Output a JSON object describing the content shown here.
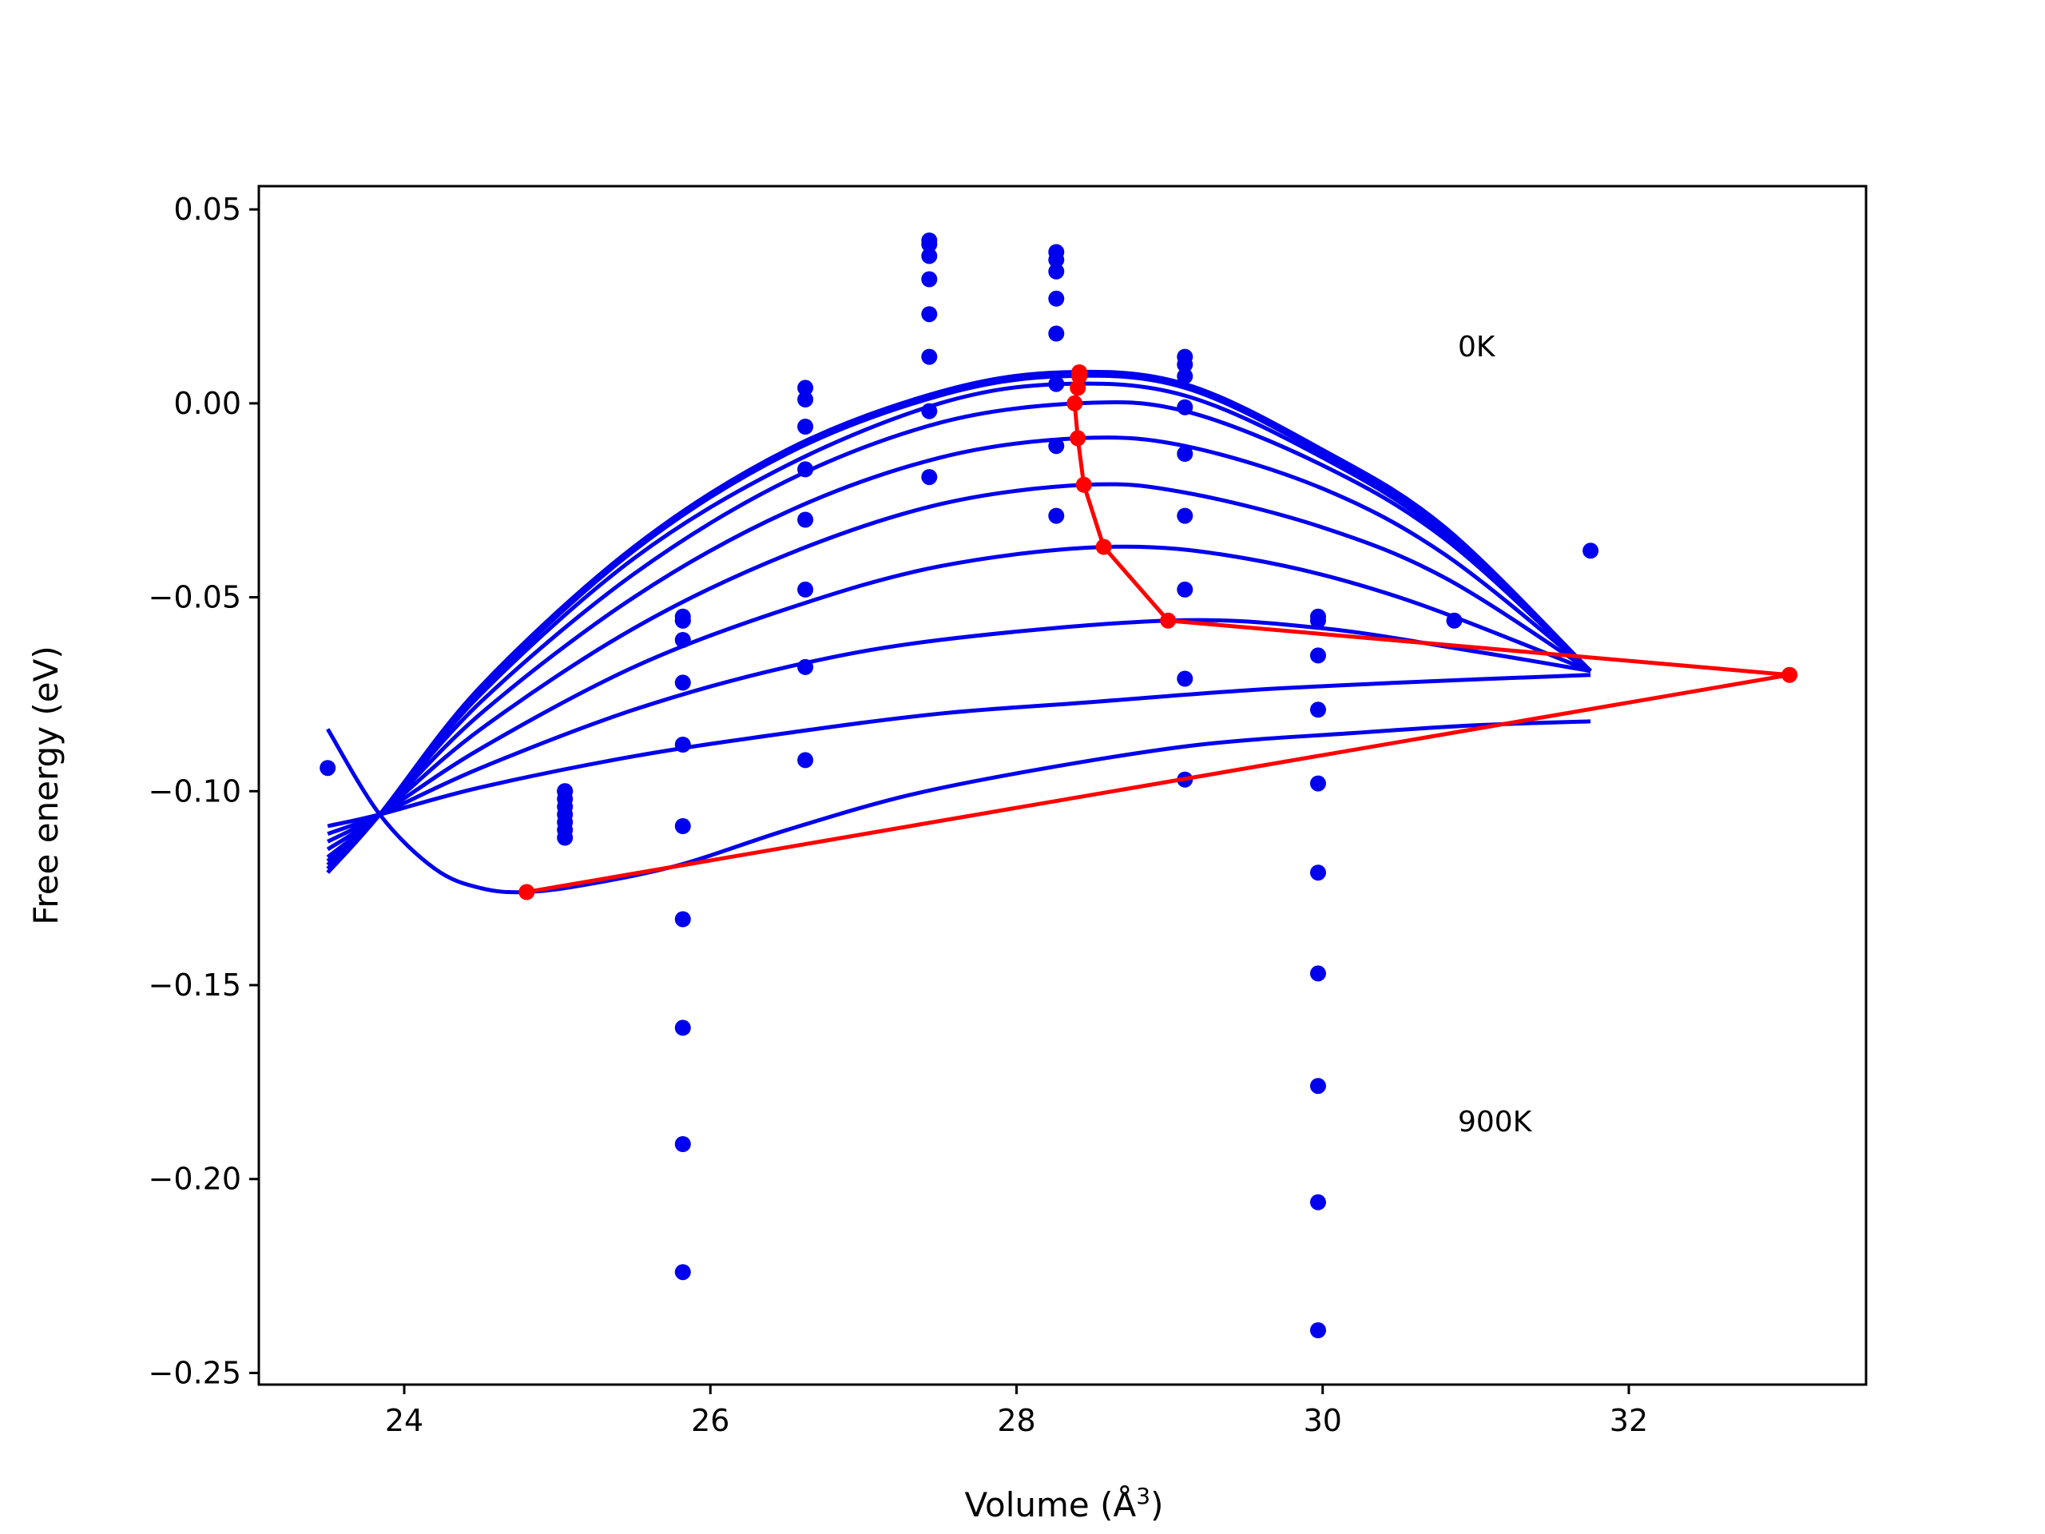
{
  "chart_data": {
    "type": "line",
    "xlabel": "Volume (Å",
    "xlabel_sup": "3",
    "xlabel_close": ")",
    "ylabel": "Free energy (eV)",
    "xlim": [
      23.05,
      33.55
    ],
    "ylim": [
      -0.253,
      0.056
    ],
    "xticks": [
      24,
      26,
      28,
      30,
      32
    ],
    "xtick_labels": [
      "24",
      "26",
      "28",
      "30",
      "32"
    ],
    "yticks": [
      0.05,
      0.0,
      -0.05,
      -0.1,
      -0.15,
      -0.2,
      -0.25
    ],
    "ytick_labels": [
      "0.05",
      "0.00",
      "−0.05",
      "−0.10",
      "−0.15",
      "−0.20",
      "−0.25"
    ],
    "grid": false,
    "colors": {
      "fits": "#0000ee",
      "points": "#0000ee",
      "minimum_path": "#ff0000"
    },
    "annotations": [
      {
        "text": "0K",
        "x": 30.85,
        "y": 0.013
      },
      {
        "text": "900K",
        "x": 30.85,
        "y": -0.188
      }
    ],
    "fit_curves": [
      {
        "x": [
          23.5,
          23.84,
          24.5,
          25.5,
          26.5,
          27.5,
          28.3,
          29.1,
          30.0,
          30.8,
          31.75
        ],
        "y": [
          -0.121,
          -0.106,
          -0.073,
          -0.037,
          -0.012,
          0.003,
          0.008,
          0.005,
          -0.012,
          -0.032,
          -0.069
        ]
      },
      {
        "x": [
          23.5,
          23.84,
          24.5,
          25.5,
          26.5,
          27.5,
          28.3,
          29.1,
          30.0,
          30.8,
          31.75
        ],
        "y": [
          -0.12,
          -0.106,
          -0.074,
          -0.038,
          -0.013,
          0.002,
          0.007,
          0.004,
          -0.013,
          -0.033,
          -0.069
        ]
      },
      {
        "x": [
          23.5,
          23.84,
          24.5,
          25.5,
          26.5,
          27.5,
          28.3,
          29.1,
          30.0,
          30.8,
          31.75
        ],
        "y": [
          -0.119,
          -0.106,
          -0.075,
          -0.04,
          -0.016,
          0.0,
          0.005,
          0.002,
          -0.014,
          -0.034,
          -0.069
        ]
      },
      {
        "x": [
          23.5,
          23.84,
          24.5,
          25.5,
          26.5,
          27.5,
          28.4,
          29.1,
          30.0,
          30.8,
          31.75
        ],
        "y": [
          -0.118,
          -0.106,
          -0.077,
          -0.044,
          -0.02,
          -0.005,
          0.0,
          -0.002,
          -0.016,
          -0.035,
          -0.069
        ]
      },
      {
        "x": [
          23.5,
          23.84,
          24.5,
          25.5,
          26.5,
          27.5,
          28.4,
          29.1,
          30.0,
          30.8,
          31.75
        ],
        "y": [
          -0.117,
          -0.106,
          -0.08,
          -0.05,
          -0.028,
          -0.014,
          -0.009,
          -0.011,
          -0.022,
          -0.039,
          -0.069
        ]
      },
      {
        "x": [
          23.5,
          23.84,
          24.5,
          25.5,
          26.5,
          27.5,
          28.45,
          29.1,
          30.0,
          30.8,
          31.75
        ],
        "y": [
          -0.115,
          -0.106,
          -0.084,
          -0.058,
          -0.039,
          -0.026,
          -0.021,
          -0.023,
          -0.032,
          -0.045,
          -0.069
        ]
      },
      {
        "x": [
          23.5,
          23.84,
          24.5,
          25.5,
          26.5,
          27.5,
          28.6,
          29.5,
          30.5,
          31.75
        ],
        "y": [
          -0.113,
          -0.106,
          -0.089,
          -0.068,
          -0.053,
          -0.042,
          -0.037,
          -0.04,
          -0.05,
          -0.069
        ]
      },
      {
        "x": [
          23.5,
          23.84,
          24.5,
          25.5,
          26.5,
          27.5,
          29.0,
          30.0,
          31.0,
          31.75
        ],
        "y": [
          -0.111,
          -0.106,
          -0.094,
          -0.079,
          -0.068,
          -0.061,
          -0.056,
          -0.058,
          -0.064,
          -0.069
        ]
      },
      {
        "x": [
          23.5,
          23.84,
          24.5,
          25.5,
          26.5,
          27.5,
          28.5,
          29.5,
          30.5,
          31.75
        ],
        "y": [
          -0.109,
          -0.106,
          -0.099,
          -0.091,
          -0.085,
          -0.08,
          -0.077,
          -0.074,
          -0.072,
          -0.07
        ]
      },
      {
        "x": [
          23.5,
          23.84,
          24.2,
          24.5,
          24.8,
          25.2,
          25.8,
          26.5,
          27.3,
          28.2,
          29.2,
          30.2,
          31.0,
          31.75
        ],
        "y": [
          -0.084,
          -0.106,
          -0.12,
          -0.125,
          -0.126,
          -0.124,
          -0.119,
          -0.11,
          -0.101,
          -0.094,
          -0.088,
          -0.085,
          -0.083,
          -0.082
        ]
      }
    ],
    "scatter_points": {
      "x": [
        23.5,
        25.05,
        25.05,
        25.05,
        25.05,
        25.05,
        25.05,
        25.05,
        25.05,
        25.82,
        25.82,
        25.82,
        25.82,
        25.82,
        25.82,
        25.82,
        25.82,
        25.82,
        25.82,
        25.82,
        26.62,
        26.62,
        26.62,
        26.62,
        26.62,
        26.62,
        26.62,
        26.62,
        27.43,
        27.43,
        27.43,
        27.43,
        27.43,
        27.43,
        27.43,
        27.43,
        28.26,
        28.26,
        28.26,
        28.26,
        28.26,
        28.26,
        28.26,
        28.26,
        29.1,
        29.1,
        29.1,
        29.1,
        29.1,
        29.1,
        29.1,
        29.1,
        29.1,
        29.97,
        29.97,
        29.97,
        29.97,
        29.97,
        29.97,
        29.97,
        29.97,
        29.97,
        29.97,
        30.86,
        31.75
      ],
      "y": [
        -0.094,
        -0.1,
        -0.102,
        -0.104,
        -0.106,
        -0.108,
        -0.11,
        -0.112,
        -0.1,
        -0.055,
        -0.056,
        -0.061,
        -0.072,
        -0.088,
        -0.109,
        -0.133,
        -0.161,
        -0.191,
        -0.224,
        -0.056,
        0.004,
        0.001,
        -0.006,
        -0.017,
        -0.03,
        -0.048,
        -0.068,
        -0.092,
        0.042,
        0.038,
        0.032,
        0.023,
        0.012,
        -0.002,
        -0.019,
        0.041,
        0.039,
        0.037,
        0.034,
        0.027,
        0.018,
        0.005,
        -0.011,
        -0.029,
        0.012,
        0.01,
        0.007,
        -0.001,
        -0.013,
        -0.029,
        -0.048,
        -0.071,
        -0.097,
        -0.055,
        -0.065,
        -0.079,
        -0.098,
        -0.121,
        -0.147,
        -0.176,
        -0.206,
        -0.239,
        -0.056,
        -0.056,
        -0.038
      ]
    },
    "minimum_path": {
      "x": [
        28.41,
        28.41,
        28.4,
        28.38,
        28.4,
        28.44,
        28.57,
        28.99,
        33.05,
        24.8
      ],
      "y": [
        0.008,
        0.007,
        0.004,
        0.0,
        -0.009,
        -0.021,
        -0.037,
        -0.056,
        -0.07,
        -0.126
      ]
    }
  }
}
